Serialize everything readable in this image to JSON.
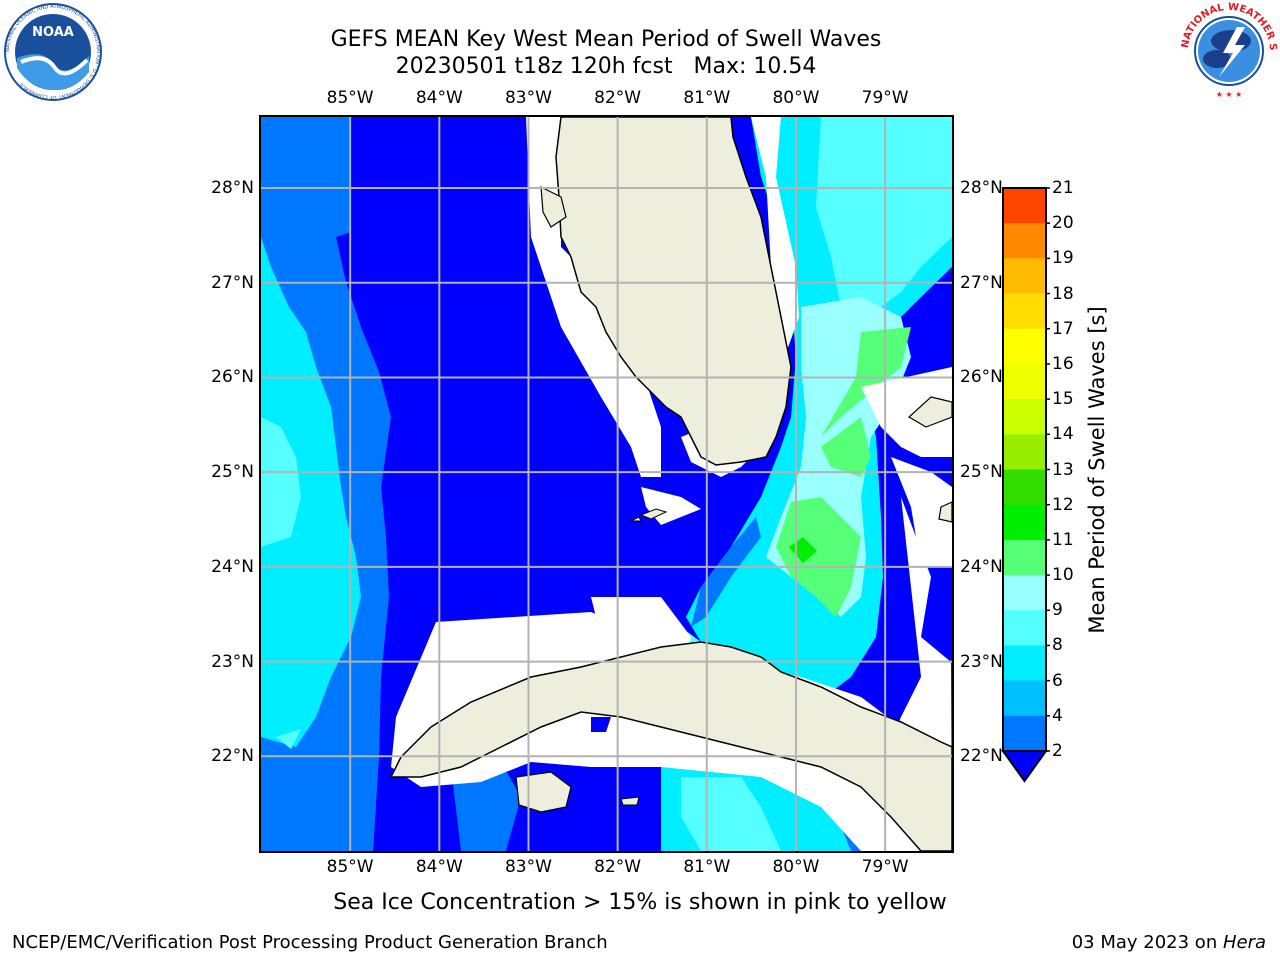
{
  "title": {
    "line1": "GEFS MEAN Key West Mean Period of Swell Waves",
    "line2": "20230501 t18z 120h fcst   Max: 10.54"
  },
  "logos": {
    "noaa_text": "NOAA",
    "noaa_ring_text": "NATIONAL OCEANIC AND ATMOSPHERIC ADMINISTRATION · U.S. DEPARTMENT OF COMMERCE",
    "nws_ring_text": "NATIONAL WEATHER SERVICE"
  },
  "map": {
    "lon_ticks": [
      "85°W",
      "84°W",
      "83°W",
      "82°W",
      "81°W",
      "80°W",
      "79°W"
    ],
    "lat_ticks": [
      "28°N",
      "27°N",
      "26°N",
      "25°N",
      "24°N",
      "23°N",
      "22°N"
    ],
    "lon_values": [
      -85,
      -84,
      -83,
      -82,
      -81,
      -80,
      -79
    ],
    "lat_values": [
      28,
      27,
      26,
      25,
      24,
      23,
      22
    ],
    "extent": {
      "lon_min": -86.0,
      "lon_max": -78.25,
      "lat_min": 21.0,
      "lat_max": 28.75
    },
    "land_color": "#eeeedd",
    "grid_color": "#b3b3b3"
  },
  "colorbar": {
    "label": "Mean Period of Swell Waves [s]",
    "ticks": [
      "2",
      "4",
      "6",
      "8",
      "9",
      "10",
      "11",
      "12",
      "13",
      "14",
      "15",
      "16",
      "17",
      "18",
      "19",
      "20",
      "21"
    ],
    "colors": [
      "#0077ff",
      "#00bfff",
      "#00eeff",
      "#55ffff",
      "#99ffff",
      "#55ff77",
      "#00ee00",
      "#33dd00",
      "#99ee00",
      "#ccff00",
      "#eeff00",
      "#ffff00",
      "#ffdd00",
      "#ffbb00",
      "#ff8800",
      "#ff4400",
      "#ff0000"
    ],
    "under_color": "#0000ff"
  },
  "note": "Sea Ice Concentration > 15% is shown in pink to yellow",
  "footer": {
    "left": "NCEP/EMC/Verification Post Processing Product Generation Branch",
    "right_date": "03 May 2023 on ",
    "right_machine": "Hera"
  }
}
